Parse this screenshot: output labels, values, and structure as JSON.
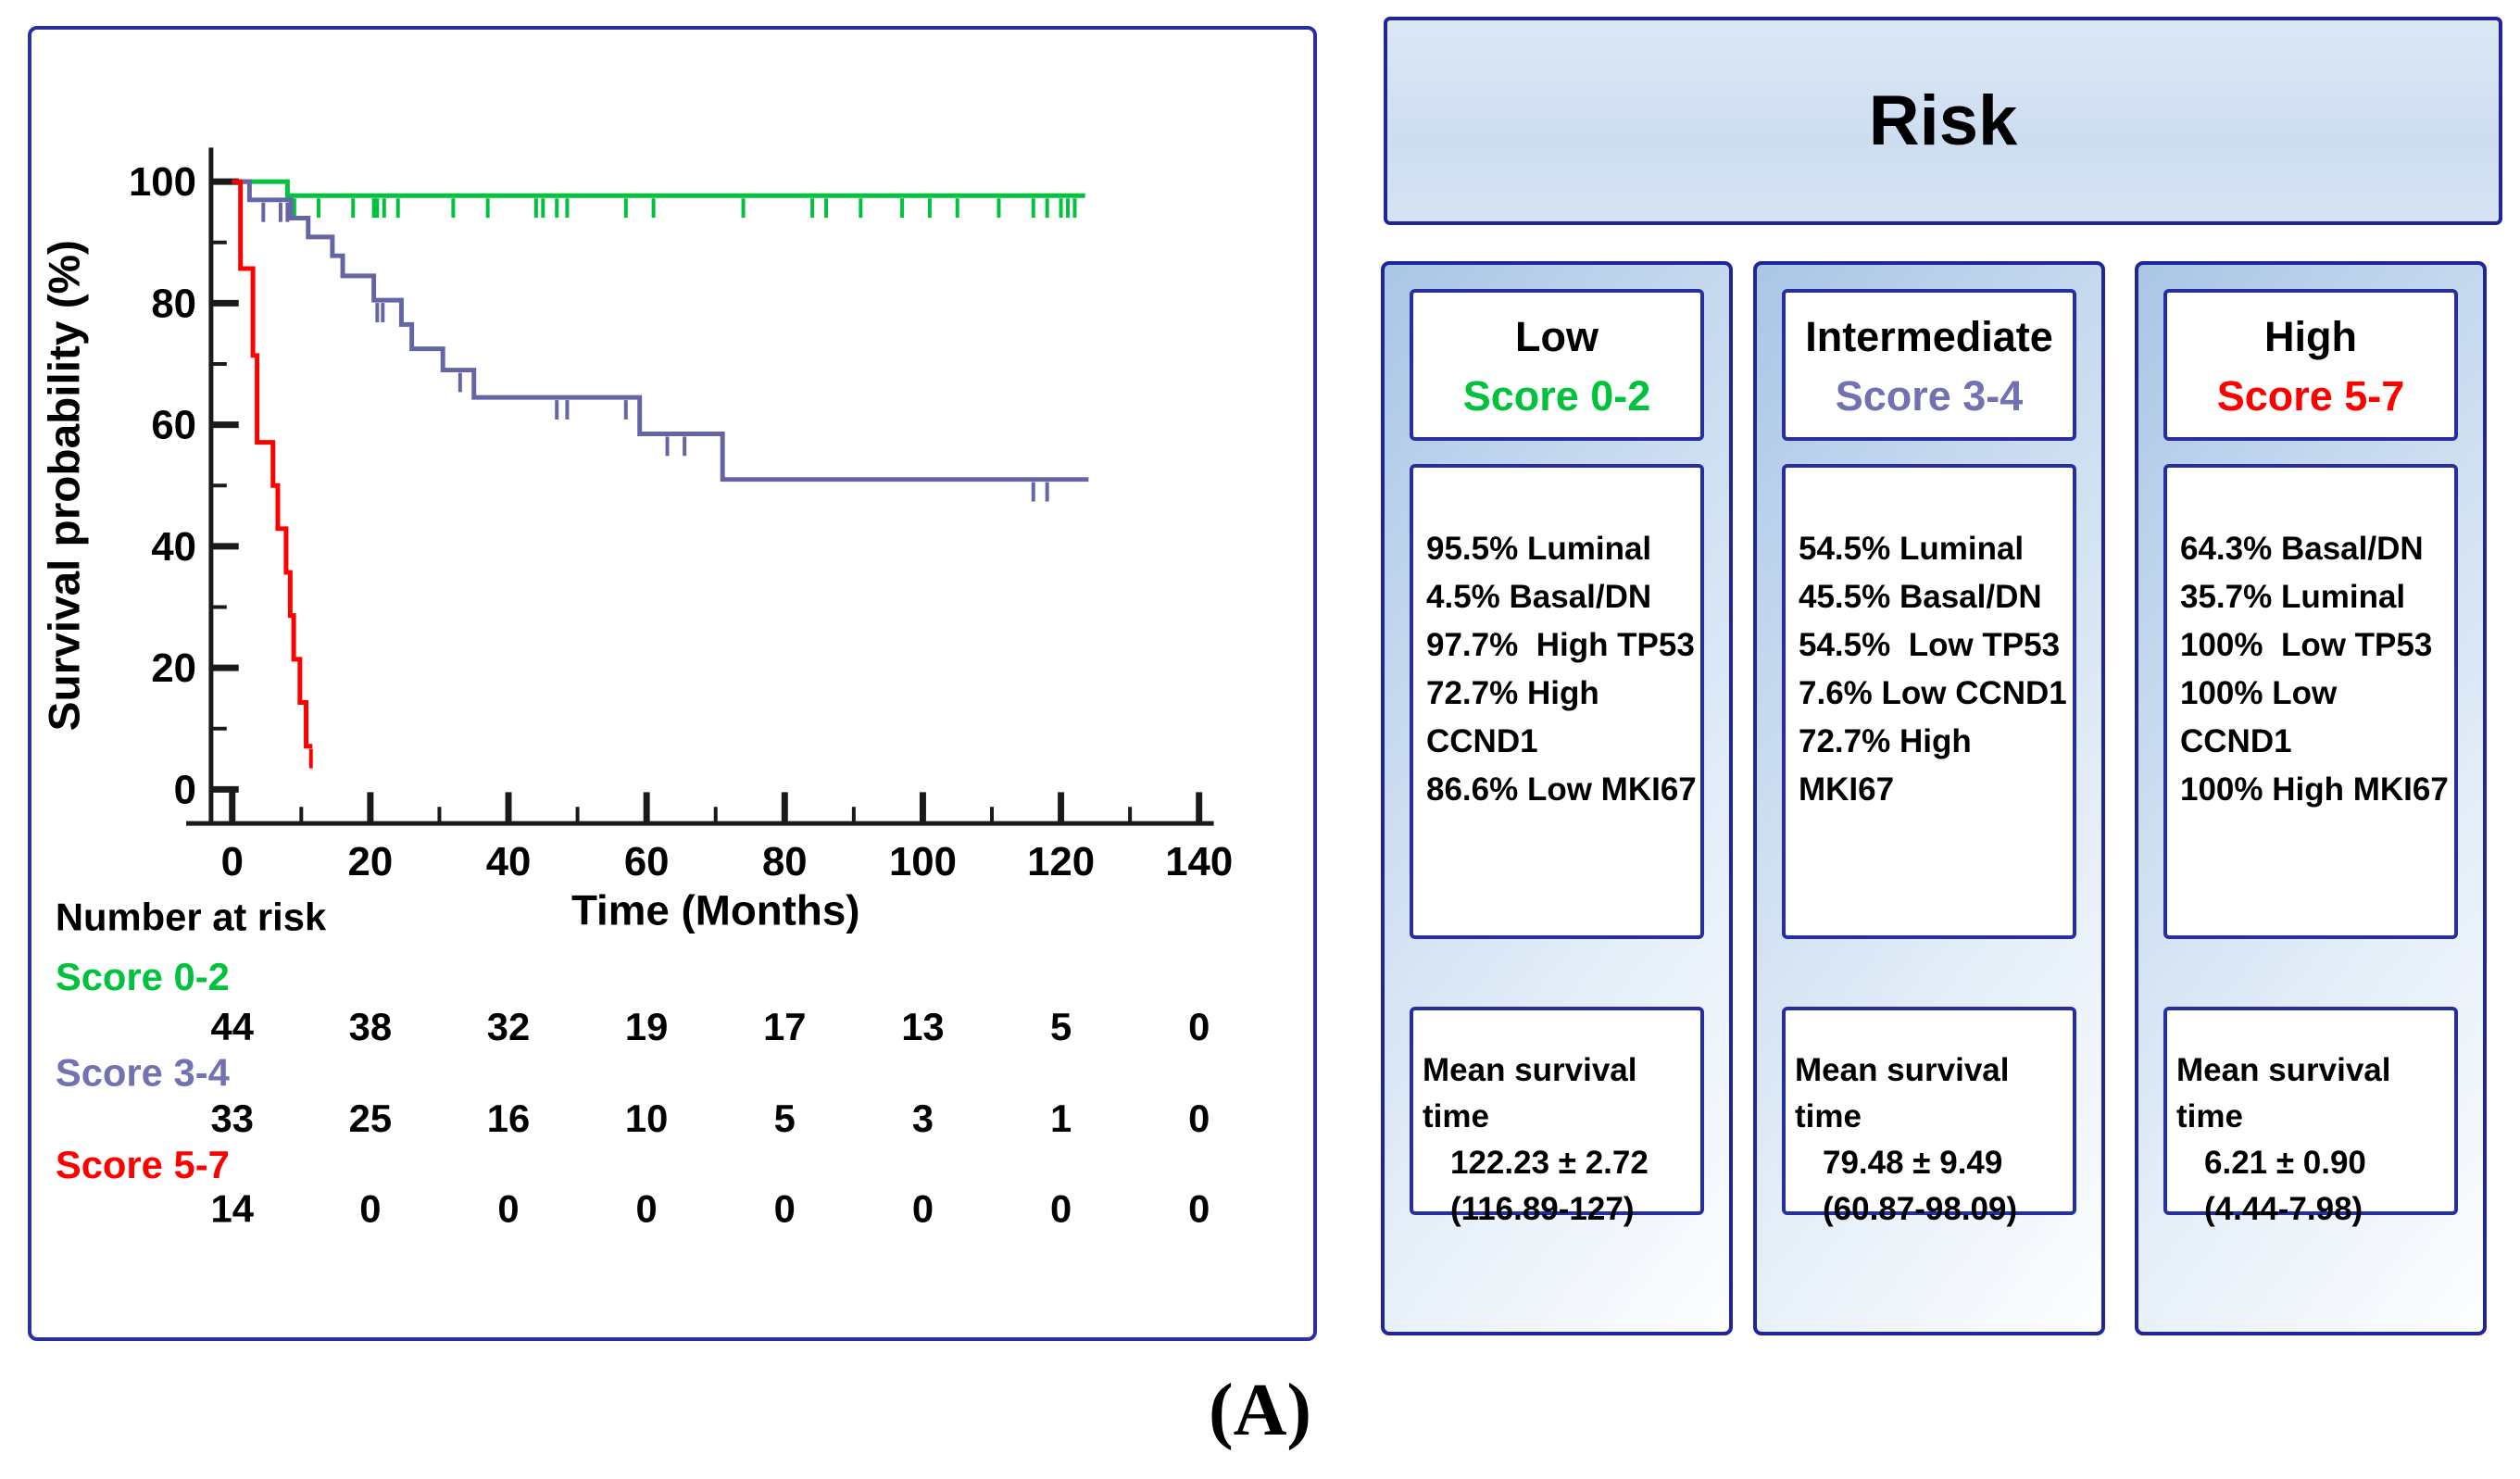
{
  "figure_label": "(A)",
  "chart_data": {
    "type": "line",
    "subtype": "kaplan-meier-step-curves",
    "title": "",
    "xlabel": "Time (Months)",
    "ylabel": "Survival probability (%)",
    "xlim": [
      0,
      140
    ],
    "ylim": [
      0,
      100
    ],
    "xticks": [
      0,
      20,
      40,
      60,
      80,
      100,
      120,
      140
    ],
    "xminor": [
      10,
      30,
      50,
      70,
      90,
      110,
      130
    ],
    "yticks": [
      0,
      20,
      40,
      60,
      80,
      100
    ],
    "yminor": [
      10,
      30,
      50,
      70,
      90
    ],
    "grid": false,
    "legend_position": "none",
    "axis_color": "#1a1a1a",
    "series": [
      {
        "name": "Score 0-2",
        "color": "#00c23c",
        "start": [
          0,
          100
        ],
        "drops": [
          [
            8,
            97.7
          ]
        ],
        "end": 123.5,
        "censors": [
          [
            9,
            97.7
          ],
          [
            12.5,
            97.7
          ],
          [
            17.5,
            97.7
          ],
          [
            20.5,
            97.7
          ],
          [
            21,
            97.7
          ],
          [
            22,
            97.7
          ],
          [
            24,
            97.7
          ],
          [
            32,
            97.7
          ],
          [
            37,
            97.7
          ],
          [
            44,
            97.7
          ],
          [
            45,
            97.7
          ],
          [
            47,
            97.7
          ],
          [
            48.5,
            97.7
          ],
          [
            57,
            97.7
          ],
          [
            61,
            97.7
          ],
          [
            74,
            97.7
          ],
          [
            84,
            97.7
          ],
          [
            86,
            97.7
          ],
          [
            91,
            97.7
          ],
          [
            97,
            97.7
          ],
          [
            101,
            97.7
          ],
          [
            105,
            97.7
          ],
          [
            111,
            97.7
          ],
          [
            116,
            97.7
          ],
          [
            118,
            97.7
          ],
          [
            120,
            97.7
          ],
          [
            121,
            97.7
          ],
          [
            122,
            97.7
          ]
        ]
      },
      {
        "name": "Score 3-4",
        "color": "#6565a6",
        "start": [
          0,
          100
        ],
        "drops": [
          [
            2.5,
            97
          ],
          [
            8.5,
            94
          ],
          [
            11,
            90.9
          ],
          [
            14.5,
            87.8
          ],
          [
            16,
            84.5
          ],
          [
            20.5,
            80.5
          ],
          [
            24.5,
            76.5
          ],
          [
            26,
            72.5
          ],
          [
            30.5,
            69
          ],
          [
            35,
            64.5
          ],
          [
            59,
            58.5
          ],
          [
            71,
            51
          ]
        ],
        "end": 124,
        "censors": [
          [
            4.5,
            97
          ],
          [
            7,
            97
          ],
          [
            8,
            97
          ],
          [
            21,
            80.5
          ],
          [
            21.8,
            80.5
          ],
          [
            33,
            69
          ],
          [
            47,
            64.5
          ],
          [
            48.5,
            64.5
          ],
          [
            57,
            64.5
          ],
          [
            63,
            58.5
          ],
          [
            65.5,
            58.5
          ],
          [
            116,
            51
          ],
          [
            118,
            51
          ]
        ]
      },
      {
        "name": "Score 5-7",
        "color": "#ff0000",
        "start": [
          0,
          100
        ],
        "drops": [
          [
            1.2,
            85.7
          ],
          [
            3,
            71.4
          ],
          [
            3.6,
            57.1
          ],
          [
            5.9,
            50
          ],
          [
            6.6,
            42.9
          ],
          [
            7.8,
            35.7
          ],
          [
            8.4,
            28.6
          ],
          [
            8.9,
            21.4
          ],
          [
            9.8,
            14.3
          ],
          [
            10.7,
            7.1
          ]
        ],
        "end": 11.6,
        "censors": [
          [
            11.4,
            7.1
          ]
        ]
      }
    ],
    "number_at_risk": {
      "header": "Number at risk",
      "times": [
        0,
        20,
        40,
        60,
        80,
        100,
        120,
        140
      ],
      "rows": [
        {
          "label": "Score 0-2",
          "color": "#00c23c",
          "values": [
            "44",
            "38",
            "32",
            "19",
            "17",
            "13",
            "5",
            "0"
          ]
        },
        {
          "label": "Score 3-4",
          "color": "#7272b0",
          "values": [
            "33",
            "25",
            "16",
            "10",
            "5",
            "3",
            "1",
            "0"
          ]
        },
        {
          "label": "Score 5-7",
          "color": "#ff0000",
          "values": [
            "14",
            "0",
            "0",
            "0",
            "0",
            "0",
            "0",
            "0"
          ]
        }
      ]
    }
  },
  "risk": {
    "header_label": "Risk",
    "columns": [
      {
        "name": "Low",
        "score": "Score 0-2",
        "score_color": "#00c23c",
        "characteristics": [
          "95.5% Luminal",
          "4.5% Basal/DN",
          "97.7%  High TP53",
          "72.7% High CCND1",
          "86.6% Low MKI67"
        ],
        "mean_survival": [
          "Mean survival time",
          "122.23 ± 2.72",
          "(116.89-127)"
        ]
      },
      {
        "name": "Intermediate",
        "score": "Score 3-4",
        "score_color": "#7272b0",
        "characteristics": [
          "54.5% Luminal",
          "45.5% Basal/DN",
          "54.5%  Low TP53",
          "7.6% Low CCND1",
          "72.7% High MKI67"
        ],
        "mean_survival": [
          "Mean survival time",
          "79.48 ± 9.49",
          "(60.87-98.09)"
        ]
      },
      {
        "name": "High",
        "score": "Score 5-7",
        "score_color": "#ff0000",
        "characteristics": [
          "64.3% Basal/DN",
          "35.7% Luminal",
          "100%  Low TP53",
          "100% Low CCND1",
          "100% High MKI67"
        ],
        "mean_survival": [
          "Mean survival time",
          "6.21 ± 0.90",
          "(4.44-7.98)"
        ]
      }
    ]
  },
  "colors": {
    "panel_border": "#2b2fa0",
    "box_border": "#272e9e",
    "header_bg": "#d5e3f4",
    "green": "#00c23c",
    "purple": "#6565a6",
    "red": "#ff0000"
  }
}
